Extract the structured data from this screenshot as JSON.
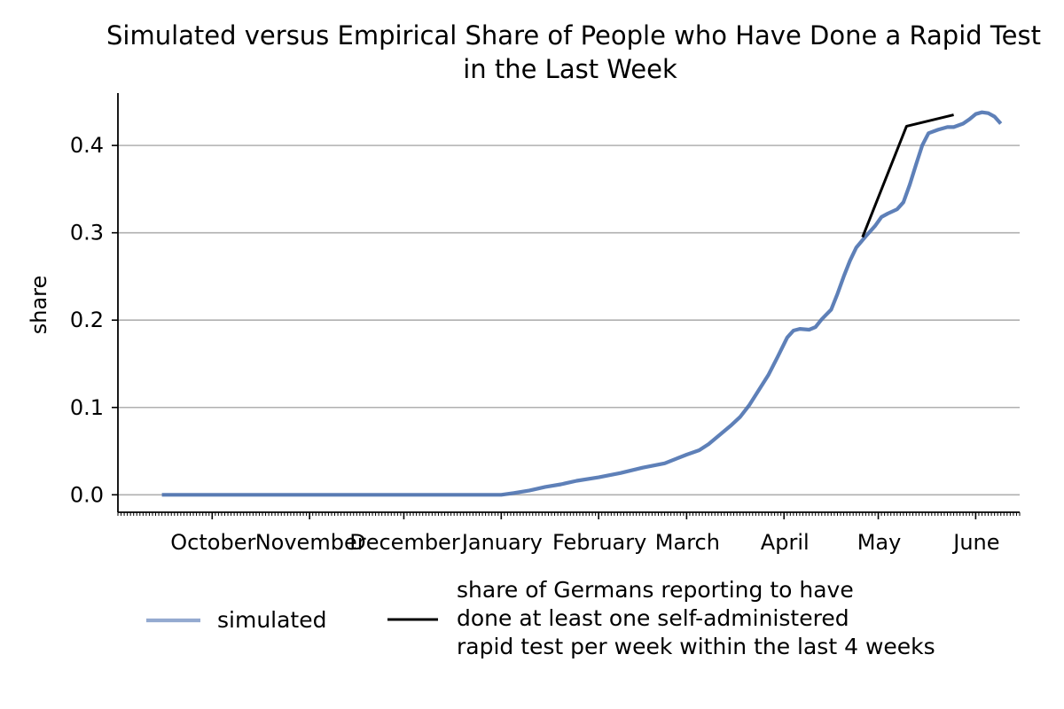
{
  "chart_data": {
    "type": "line",
    "title": "Simulated versus Empirical Share of People who Have Done a Rapid Test",
    "title_line2": "in the Last Week",
    "xlabel": "",
    "ylabel": "share",
    "ylim": [
      -0.02,
      0.46
    ],
    "yticks": [
      0.0,
      0.1,
      0.2,
      0.3,
      0.4
    ],
    "ytick_labels": [
      "0.0",
      "0.1",
      "0.2",
      "0.3",
      "0.4"
    ],
    "grid": "y",
    "xaxis": "date",
    "xlim": [
      "2020-09-01",
      "2021-06-15"
    ],
    "xticks": [
      {
        "date": "2020-10-01",
        "label": "October"
      },
      {
        "date": "2020-11-01",
        "label": "November"
      },
      {
        "date": "2020-12-01",
        "label": "December"
      },
      {
        "date": "2021-01-01",
        "label": "January"
      },
      {
        "date": "2021-02-01",
        "label": "February"
      },
      {
        "date": "2021-03-01",
        "label": "March"
      },
      {
        "date": "2021-04-01",
        "label": "April"
      },
      {
        "date": "2021-05-01",
        "label": "May"
      },
      {
        "date": "2021-06-01",
        "label": "June"
      }
    ],
    "series": [
      {
        "name": "simulated",
        "color": "#4c72b0",
        "points": [
          [
            "2020-09-15",
            0.0
          ],
          [
            "2020-10-15",
            0.0
          ],
          [
            "2020-11-15",
            0.0
          ],
          [
            "2020-12-15",
            0.0
          ],
          [
            "2021-01-01",
            0.0
          ],
          [
            "2021-01-05",
            0.002
          ],
          [
            "2021-01-10",
            0.005
          ],
          [
            "2021-01-15",
            0.009
          ],
          [
            "2021-01-20",
            0.012
          ],
          [
            "2021-01-25",
            0.016
          ],
          [
            "2021-02-01",
            0.02
          ],
          [
            "2021-02-08",
            0.025
          ],
          [
            "2021-02-15",
            0.031
          ],
          [
            "2021-02-22",
            0.036
          ],
          [
            "2021-03-01",
            0.046
          ],
          [
            "2021-03-05",
            0.051
          ],
          [
            "2021-03-08",
            0.058
          ],
          [
            "2021-03-12",
            0.07
          ],
          [
            "2021-03-15",
            0.079
          ],
          [
            "2021-03-18",
            0.089
          ],
          [
            "2021-03-21",
            0.103
          ],
          [
            "2021-03-24",
            0.12
          ],
          [
            "2021-03-27",
            0.137
          ],
          [
            "2021-03-30",
            0.158
          ],
          [
            "2021-04-02",
            0.18
          ],
          [
            "2021-04-04",
            0.188
          ],
          [
            "2021-04-06",
            0.19
          ],
          [
            "2021-04-09",
            0.189
          ],
          [
            "2021-04-11",
            0.192
          ],
          [
            "2021-04-13",
            0.201
          ],
          [
            "2021-04-16",
            0.212
          ],
          [
            "2021-04-18",
            0.23
          ],
          [
            "2021-04-20",
            0.25
          ],
          [
            "2021-04-22",
            0.268
          ],
          [
            "2021-04-24",
            0.283
          ],
          [
            "2021-04-27",
            0.296
          ],
          [
            "2021-04-30",
            0.308
          ],
          [
            "2021-05-02",
            0.318
          ],
          [
            "2021-05-04",
            0.322
          ],
          [
            "2021-05-07",
            0.327
          ],
          [
            "2021-05-09",
            0.335
          ],
          [
            "2021-05-11",
            0.355
          ],
          [
            "2021-05-13",
            0.378
          ],
          [
            "2021-05-15",
            0.4
          ],
          [
            "2021-05-17",
            0.414
          ],
          [
            "2021-05-20",
            0.418
          ],
          [
            "2021-05-23",
            0.421
          ],
          [
            "2021-05-25",
            0.421
          ],
          [
            "2021-05-28",
            0.425
          ],
          [
            "2021-05-30",
            0.43
          ],
          [
            "2021-06-01",
            0.436
          ],
          [
            "2021-06-03",
            0.438
          ],
          [
            "2021-06-05",
            0.437
          ],
          [
            "2021-06-07",
            0.433
          ],
          [
            "2021-06-09",
            0.425
          ]
        ]
      },
      {
        "name": "share of Germans reporting to have done at least one self-administered rapid test per week within the last 4 weeks",
        "color": "#000000",
        "points": [
          [
            "2021-04-26",
            0.295
          ],
          [
            "2021-05-10",
            0.422
          ],
          [
            "2021-05-25",
            0.435
          ]
        ]
      }
    ],
    "legend": {
      "placement": "bottom",
      "entries": [
        {
          "lines": [
            "simulated"
          ]
        },
        {
          "lines": [
            "share of Germans reporting to have",
            "done at least one self-administered",
            "rapid test per week within the last 4 weeks"
          ]
        }
      ]
    }
  }
}
